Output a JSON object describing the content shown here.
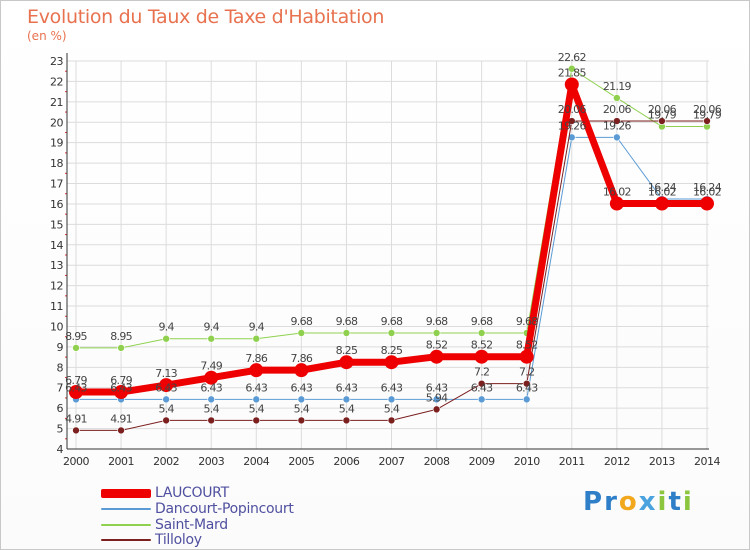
{
  "title": "Evolution du Taux de Taxe d'Habitation",
  "subtitle": "(en %)",
  "logo": {
    "text": "Proxiti",
    "icon": "proxiti-logo"
  },
  "chart_data": {
    "type": "line",
    "x": [
      "2000",
      "2001",
      "2002",
      "2003",
      "2004",
      "2005",
      "2006",
      "2007",
      "2008",
      "2009",
      "2010",
      "2011",
      "2012",
      "2013",
      "2014"
    ],
    "ylim": [
      4,
      23
    ],
    "yticks": [
      "4",
      "5",
      "6",
      "7",
      "8",
      "9",
      "10",
      "11",
      "12",
      "13",
      "14",
      "15",
      "16",
      "17",
      "18",
      "19",
      "20",
      "21",
      "22",
      "23"
    ],
    "grid": true,
    "legend_position": "bottom-left",
    "series": [
      {
        "name": "LAUCOURT",
        "color": "#ee0000",
        "width": 7,
        "marker": 7,
        "values": [
          6.79,
          6.79,
          7.13,
          7.49,
          7.86,
          7.86,
          8.25,
          8.25,
          8.52,
          8.52,
          8.52,
          21.85,
          16.02,
          16.02,
          16.02
        ],
        "labels": [
          "6.79",
          "6.79",
          "7.13",
          "7.49",
          "7.86",
          "7.86",
          "8.25",
          "8.25",
          "8.52",
          "8.52",
          "8.52",
          "21.85",
          "16.02",
          "16.02",
          "16.02"
        ]
      },
      {
        "name": "Dancourt-Popincourt",
        "color": "#5b9bd5",
        "width": 1,
        "marker": 3.5,
        "values": [
          6.43,
          6.43,
          6.43,
          6.43,
          6.43,
          6.43,
          6.43,
          6.43,
          6.43,
          6.43,
          6.43,
          19.26,
          19.26,
          16.24,
          16.24
        ],
        "labels": [
          "6.43",
          "6.43",
          "6.43",
          "6.43",
          "6.43",
          "6.43",
          "6.43",
          "6.43",
          "6.43",
          "6.43",
          "6.43",
          "19.26",
          "19.26",
          "16.24",
          "16.24"
        ]
      },
      {
        "name": "Saint-Mard",
        "color": "#8fd14f",
        "width": 1,
        "marker": 3.5,
        "values": [
          8.95,
          8.95,
          9.4,
          9.4,
          9.4,
          9.68,
          9.68,
          9.68,
          9.68,
          9.68,
          9.68,
          22.62,
          21.19,
          19.79,
          19.79
        ],
        "labels": [
          "8.95",
          "8.95",
          "9.4",
          "9.4",
          "9.4",
          "9.68",
          "9.68",
          "9.68",
          "9.68",
          "9.68",
          "9.68",
          "22.62",
          "21.19",
          "19.79",
          "19.79"
        ]
      },
      {
        "name": "Tilloloy",
        "color": "#7b1f1f",
        "width": 1,
        "marker": 3.5,
        "values": [
          4.91,
          4.91,
          5.4,
          5.4,
          5.4,
          5.4,
          5.4,
          5.4,
          5.94,
          7.2,
          7.2,
          20.06,
          20.06,
          20.06,
          20.06
        ],
        "labels": [
          "4.91",
          "4.91",
          "5.4",
          "5.4",
          "5.4",
          "5.4",
          "5.4",
          "5.4",
          "5.94",
          "7.2",
          "7.2",
          "20.06",
          "20.06",
          "20.06",
          "20.06"
        ]
      }
    ]
  }
}
